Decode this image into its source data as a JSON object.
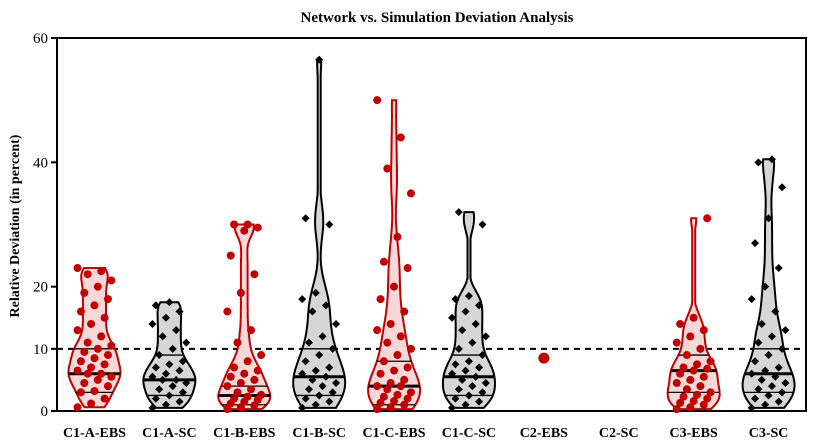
{
  "chart_data": {
    "type": "violin",
    "title": "Network vs. Simulation Deviation Analysis",
    "xlabel": "",
    "ylabel": "Relative Deviation (in percent)",
    "ylim": [
      0,
      60
    ],
    "yticks": [
      0,
      10,
      20,
      40,
      60
    ],
    "reference_line": 10,
    "colors": {
      "EBS": "#c00000",
      "SC": "#000000",
      "fill_EBS": "#f6d8d8",
      "fill_SC": "#d6d6d6"
    },
    "series": [
      {
        "name": "C1-A-EBS",
        "group": "EBS",
        "median": 6,
        "q1": 3,
        "q3": 10,
        "values": [
          0.6,
          1.2,
          2,
          3,
          3.2,
          4,
          4.5,
          5,
          5.5,
          6,
          6,
          6.5,
          7,
          7.5,
          8,
          8.5,
          9,
          9.5,
          10,
          10.5,
          11,
          12,
          13,
          14,
          15,
          16,
          17,
          18,
          19,
          20,
          21,
          22,
          22.5,
          23
        ]
      },
      {
        "name": "C1-A-SC",
        "group": "SC",
        "median": 5,
        "q1": 2.5,
        "q3": 9,
        "values": [
          0.5,
          1,
          1.5,
          2,
          2.5,
          3,
          3.5,
          4,
          4.5,
          5,
          5,
          5.5,
          6,
          6.5,
          7,
          7.5,
          8,
          9,
          10,
          11,
          12,
          13,
          14,
          15,
          16,
          17,
          17.5
        ]
      },
      {
        "name": "C1-B-EBS",
        "group": "EBS",
        "median": 2.5,
        "q1": 1,
        "q3": 4,
        "values": [
          0.3,
          0.6,
          0.9,
          1.2,
          1.5,
          1.8,
          2,
          2.3,
          2.6,
          3,
          3.5,
          4,
          4.5,
          5,
          5.5,
          6,
          6.5,
          7,
          8,
          9,
          11,
          13,
          16,
          19,
          22,
          25,
          29,
          29.5,
          30,
          30
        ]
      },
      {
        "name": "C1-B-SC",
        "group": "SC",
        "median": 5.5,
        "q1": 2.5,
        "q3": 10,
        "values": [
          0.5,
          1,
          1.5,
          2,
          2.5,
          3,
          3.5,
          4,
          4.5,
          5,
          5.5,
          6,
          6.5,
          7,
          8,
          9,
          10,
          11,
          12,
          14,
          16,
          17,
          18,
          19,
          30,
          31,
          56.5
        ]
      },
      {
        "name": "C1-C-EBS",
        "group": "EBS",
        "median": 4,
        "q1": 1,
        "q3": 8,
        "values": [
          0.3,
          0.6,
          1,
          1.3,
          1.6,
          2,
          2.3,
          2.6,
          3,
          3.5,
          4,
          4,
          4.5,
          5,
          6,
          6.5,
          7,
          8,
          9,
          10,
          11,
          12,
          13,
          14,
          16,
          18,
          20,
          23,
          24,
          28,
          35,
          39,
          44,
          50
        ]
      },
      {
        "name": "C1-C-SC",
        "group": "SC",
        "median": 5.5,
        "q1": 2.5,
        "q3": 9,
        "values": [
          0.5,
          1,
          1.5,
          2,
          2.5,
          3,
          3.5,
          4,
          4.5,
          5,
          5.5,
          6,
          6.5,
          7,
          7.5,
          8,
          9,
          10,
          11,
          12,
          13,
          14,
          15,
          16,
          17,
          18,
          18.5,
          30,
          32
        ]
      },
      {
        "name": "C2-EBS",
        "group": "EBS",
        "median": 8.5,
        "q1": 8.5,
        "q3": 8.5,
        "values": [
          8.5
        ]
      },
      {
        "name": "C2-SC",
        "group": "SC",
        "median": null,
        "q1": null,
        "q3": null,
        "values": []
      },
      {
        "name": "C3-EBS",
        "group": "EBS",
        "median": 6.5,
        "q1": 3,
        "q3": 9,
        "values": [
          0.3,
          0.6,
          1,
          1.3,
          1.6,
          2,
          2.3,
          2.6,
          3,
          3.5,
          4,
          4.5,
          5,
          5.5,
          6,
          6.5,
          6.8,
          7,
          7.5,
          8,
          9,
          10,
          11,
          12,
          13,
          14,
          15,
          31
        ]
      },
      {
        "name": "C3-SC",
        "group": "SC",
        "median": 6,
        "q1": 3,
        "q3": 10,
        "values": [
          0.5,
          1,
          1.5,
          2,
          2.5,
          3,
          3.5,
          4,
          4.5,
          5,
          5.5,
          6,
          6.5,
          7,
          8,
          9,
          10,
          11,
          12,
          13,
          14,
          16,
          18,
          20,
          23,
          27,
          31,
          36,
          40,
          40.5
        ]
      }
    ]
  }
}
